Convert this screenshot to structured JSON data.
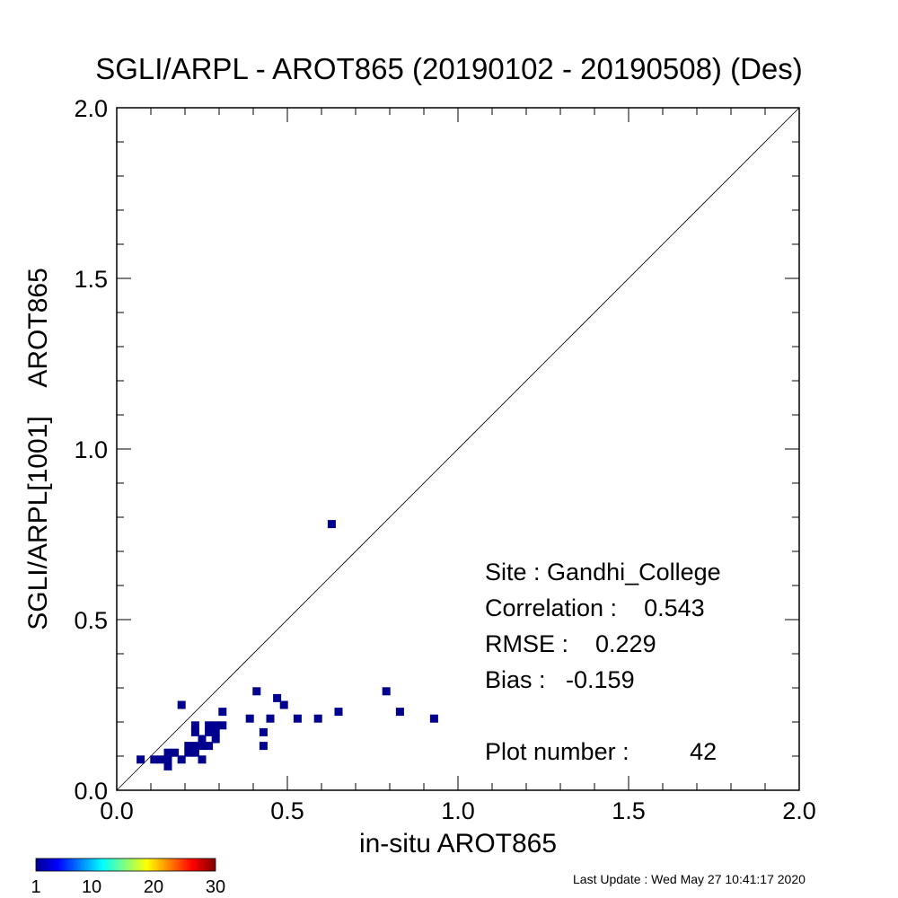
{
  "chart_data": {
    "type": "scatter",
    "title": "SGLI/ARPL - AROT865 (20190102 - 20190508) (Des)",
    "xlabel": "in-situ AROT865",
    "ylabel": "SGLI/ARPL[1001]    AROT865",
    "xlim": [
      0.0,
      2.0
    ],
    "ylim": [
      0.0,
      2.0
    ],
    "x_ticks": [
      "0.0",
      "0.5",
      "1.0",
      "1.5",
      "2.0"
    ],
    "y_ticks": [
      "0.0",
      "0.5",
      "1.0",
      "1.5",
      "2.0"
    ],
    "one_to_one_line": true,
    "grid": false,
    "points": [
      {
        "x": 0.07,
        "y": 0.09
      },
      {
        "x": 0.11,
        "y": 0.09
      },
      {
        "x": 0.13,
        "y": 0.09
      },
      {
        "x": 0.15,
        "y": 0.07
      },
      {
        "x": 0.15,
        "y": 0.09
      },
      {
        "x": 0.15,
        "y": 0.11
      },
      {
        "x": 0.17,
        "y": 0.11
      },
      {
        "x": 0.19,
        "y": 0.09
      },
      {
        "x": 0.19,
        "y": 0.25
      },
      {
        "x": 0.21,
        "y": 0.11
      },
      {
        "x": 0.21,
        "y": 0.13
      },
      {
        "x": 0.23,
        "y": 0.11
      },
      {
        "x": 0.23,
        "y": 0.13
      },
      {
        "x": 0.23,
        "y": 0.17
      },
      {
        "x": 0.23,
        "y": 0.19
      },
      {
        "x": 0.25,
        "y": 0.09
      },
      {
        "x": 0.25,
        "y": 0.13
      },
      {
        "x": 0.25,
        "y": 0.15
      },
      {
        "x": 0.27,
        "y": 0.13
      },
      {
        "x": 0.27,
        "y": 0.17
      },
      {
        "x": 0.27,
        "y": 0.19
      },
      {
        "x": 0.29,
        "y": 0.15
      },
      {
        "x": 0.29,
        "y": 0.17
      },
      {
        "x": 0.29,
        "y": 0.19
      },
      {
        "x": 0.31,
        "y": 0.19
      },
      {
        "x": 0.31,
        "y": 0.23
      },
      {
        "x": 0.39,
        "y": 0.21
      },
      {
        "x": 0.41,
        "y": 0.29
      },
      {
        "x": 0.43,
        "y": 0.13
      },
      {
        "x": 0.43,
        "y": 0.17
      },
      {
        "x": 0.45,
        "y": 0.21
      },
      {
        "x": 0.47,
        "y": 0.27
      },
      {
        "x": 0.49,
        "y": 0.25
      },
      {
        "x": 0.53,
        "y": 0.21
      },
      {
        "x": 0.59,
        "y": 0.21
      },
      {
        "x": 0.63,
        "y": 0.78
      },
      {
        "x": 0.65,
        "y": 0.23
      },
      {
        "x": 0.79,
        "y": 0.29
      },
      {
        "x": 0.83,
        "y": 0.23
      },
      {
        "x": 0.93,
        "y": 0.21
      }
    ],
    "point_color": "#00008f",
    "colorbar": {
      "min": 1,
      "max": 30,
      "labels": [
        "1",
        "10",
        "20",
        "30"
      ],
      "colormap": "jet"
    }
  },
  "stats": {
    "site": "Site : Gandhi_College",
    "correlation": "Correlation :    0.543",
    "rmse": "RMSE :    0.229",
    "bias": "Bias :   -0.159",
    "plot_number": "Plot number :         42"
  },
  "footer": "Last Update : Wed May 27 10:41:17 2020"
}
